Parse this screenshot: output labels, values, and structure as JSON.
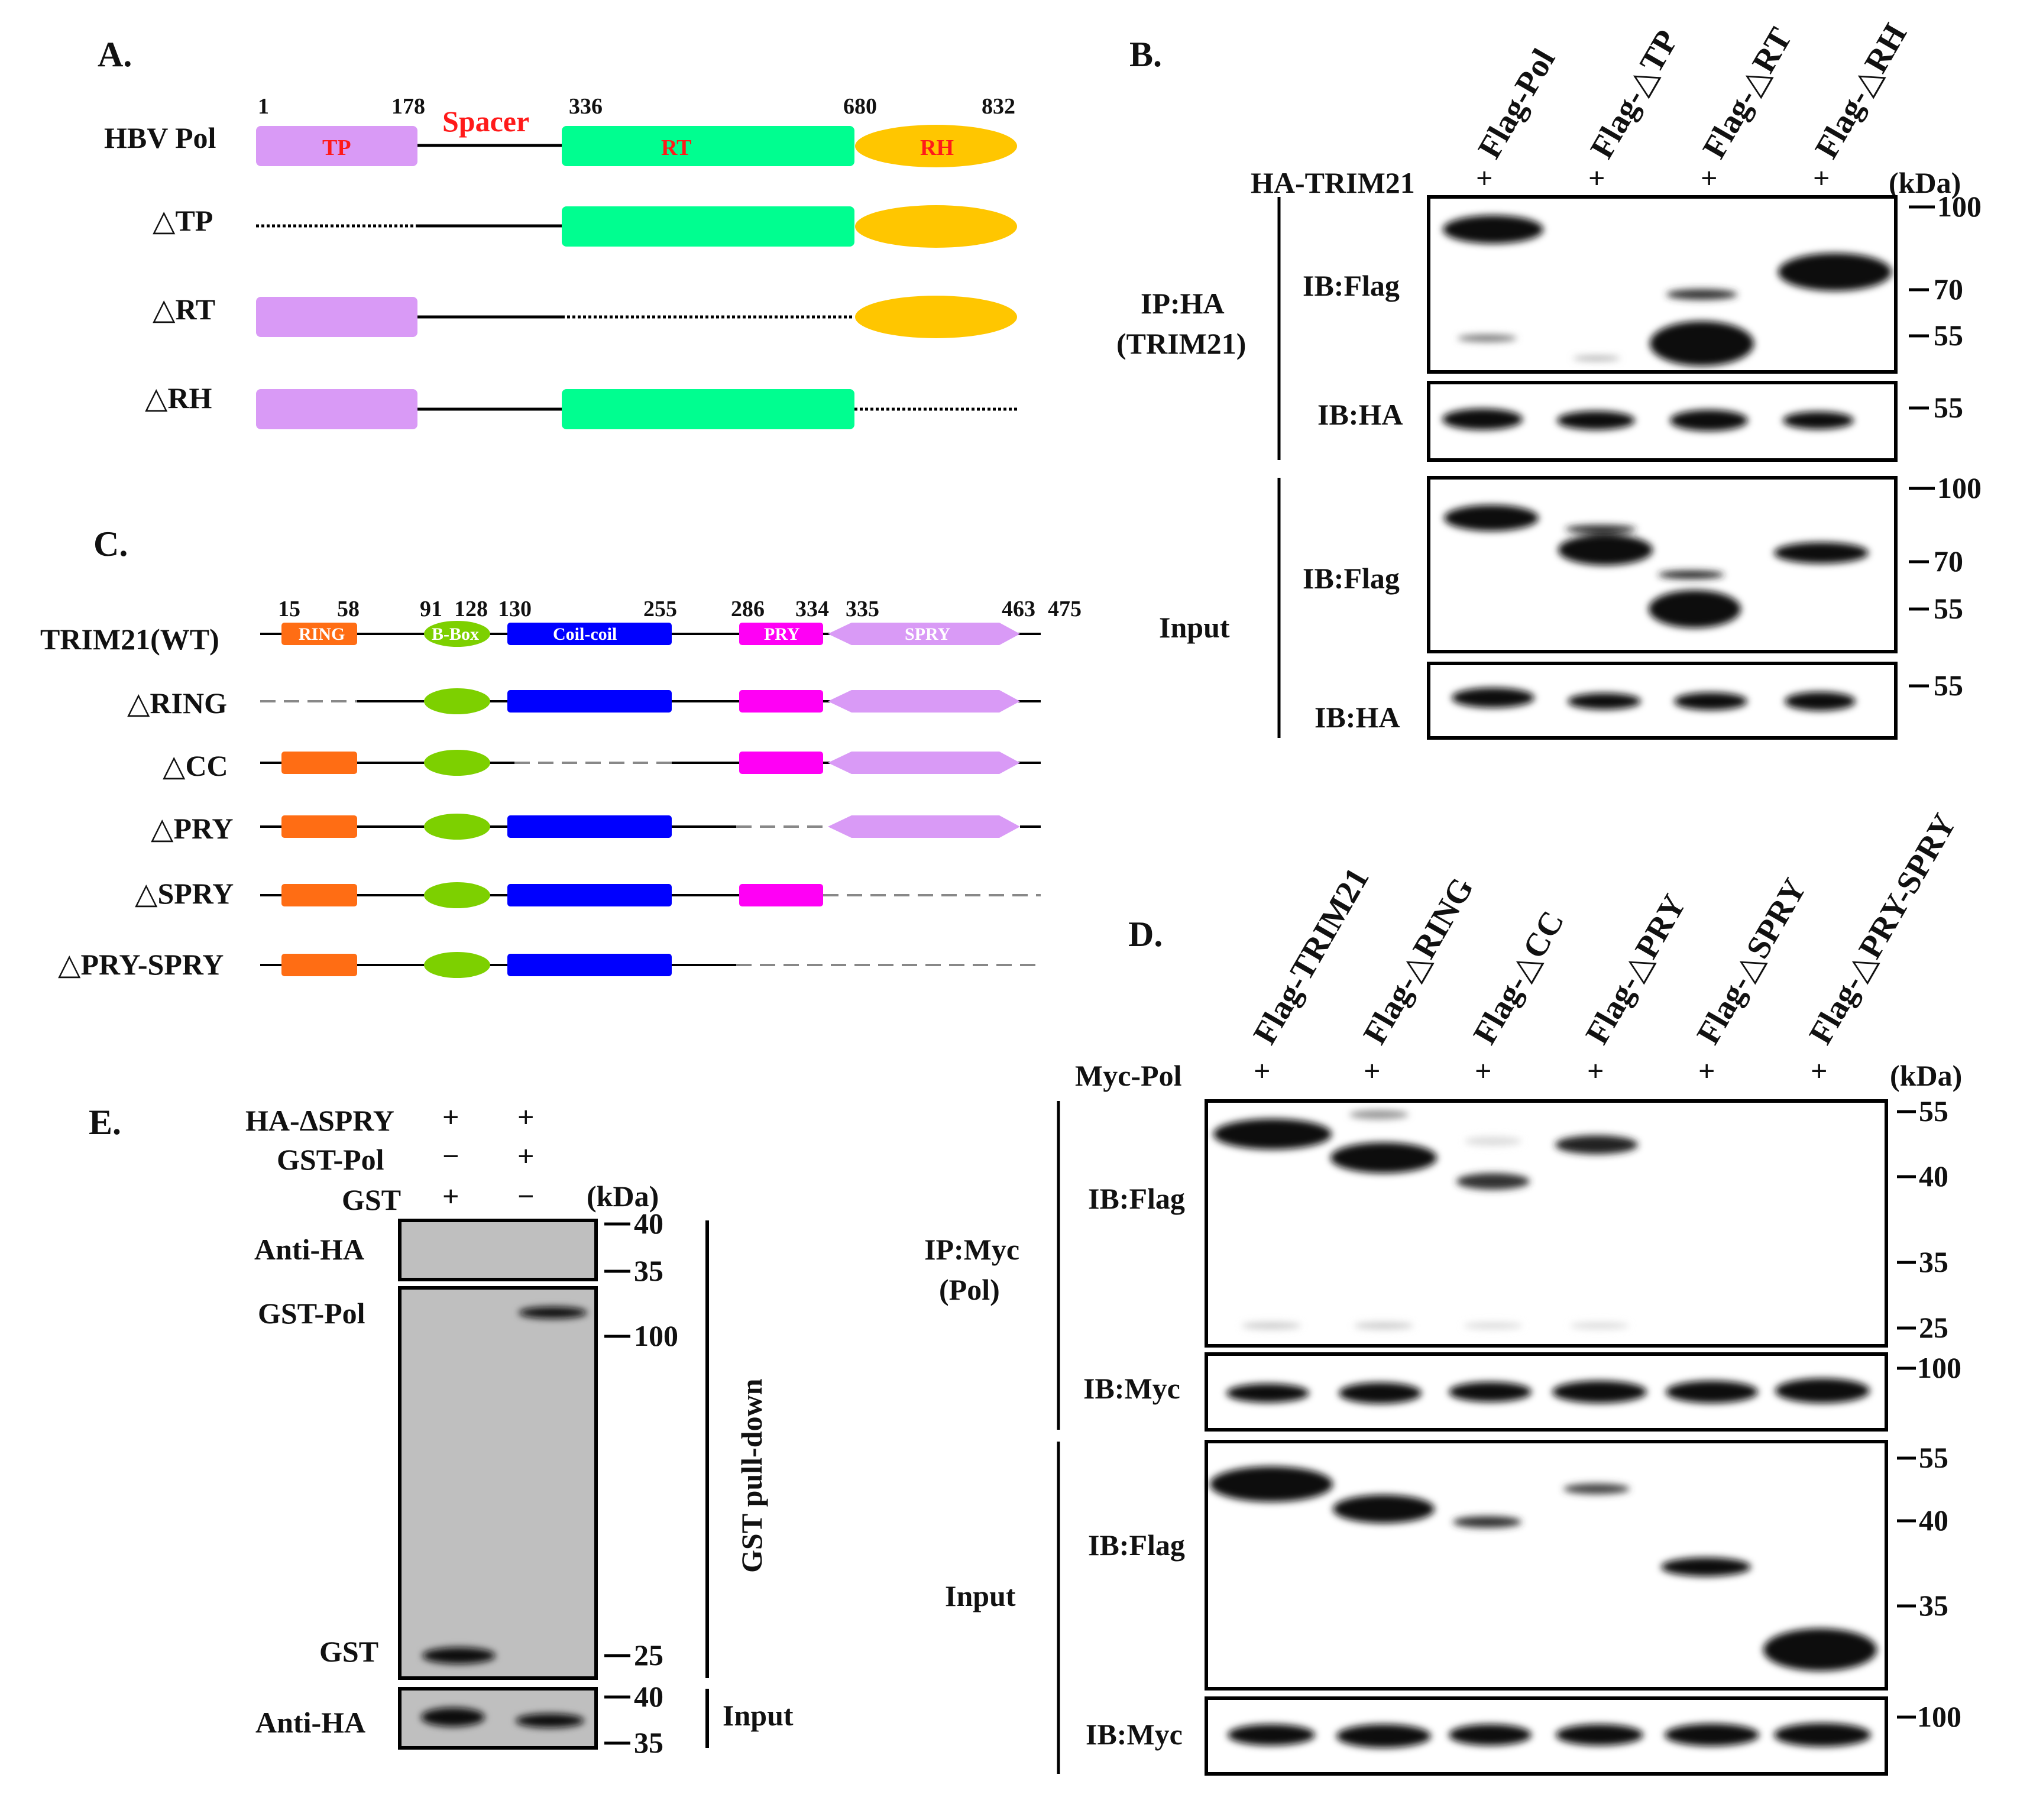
{
  "panelA": {
    "label": "A.",
    "rows": [
      "HBV Pol",
      "△TP",
      "△RT",
      "△RH"
    ],
    "positions": [
      "1",
      "178",
      "336",
      "680",
      "832"
    ],
    "spacer": "Spacer",
    "domains": [
      "TP",
      "RT",
      "RH"
    ],
    "colors": {
      "TP": "#d99af6",
      "RT": "#00fe90",
      "RH": "#ffc600"
    }
  },
  "panelB": {
    "label": "B.",
    "lanes": [
      "Flag-Pol",
      "Flag-△TP",
      "Flag-△RT",
      "Flag-△RH"
    ],
    "cotransfect": "HA-TRIM21",
    "plus": [
      "+",
      "+",
      "+",
      "+"
    ],
    "kda": "(kDa)",
    "ip_label": [
      "IP:HA",
      "(TRIM21)"
    ],
    "input_label": "Input",
    "blots": [
      "IB:Flag",
      "IB:HA",
      "IB:Flag",
      "IB:HA"
    ],
    "markers": [
      "100",
      "70",
      "55",
      "55",
      "100",
      "70",
      "55",
      "55"
    ]
  },
  "panelC": {
    "label": "C.",
    "rows": [
      "TRIM21(WT)",
      "△RING",
      "△CC",
      "△PRY",
      "△SPRY",
      "△PRY-SPRY"
    ],
    "positions": [
      "15",
      "58",
      "91",
      "128",
      "130",
      "255",
      "286",
      "334",
      "335",
      "463",
      "475"
    ],
    "domains": [
      "RING",
      "B-Box",
      "Coil-coil",
      "PRY",
      "SPRY"
    ],
    "colors": {
      "RING": "#ff6d14",
      "B-Box": "#7dd000",
      "Coil-coil": "#0000ff",
      "PRY": "#ff00f5",
      "SPRY": "#d99af6"
    }
  },
  "panelD": {
    "label": "D.",
    "lanes": [
      "Flag-TRIM21",
      "Flag-△RING",
      "Flag-△CC",
      "Flag-△PRY",
      "Flag-△SPRY",
      "Flag-△PRY-SPRY"
    ],
    "cotransfect": "Myc-Pol",
    "plus": [
      "+",
      "+",
      "+",
      "+",
      "+",
      "+"
    ],
    "kda": "(kDa)",
    "ip_label": [
      "IP:Myc",
      "(Pol)"
    ],
    "input_label": "Input",
    "blots": [
      "IB:Flag",
      "IB:Myc",
      "IB:Flag",
      "IB:Myc"
    ],
    "markers": [
      "55",
      "40",
      "35",
      "25",
      "100",
      "55",
      "40",
      "35",
      "100"
    ]
  },
  "panelE": {
    "label": "E.",
    "rows": [
      {
        "name": "HA-ΔSPRY",
        "signs": [
          "+",
          "+"
        ]
      },
      {
        "name": "GST-Pol",
        "signs": [
          "−",
          "+"
        ]
      },
      {
        "name": "GST",
        "signs": [
          "+",
          "−"
        ]
      }
    ],
    "kda": "(kDa)",
    "blot_labels": [
      "Anti-HA",
      "GST-Pol",
      "GST",
      "Anti-HA"
    ],
    "pulldown_label": "GST pull-down",
    "input_label": "Input",
    "markers": [
      "40",
      "35",
      "100",
      "25",
      "40",
      "35"
    ]
  }
}
